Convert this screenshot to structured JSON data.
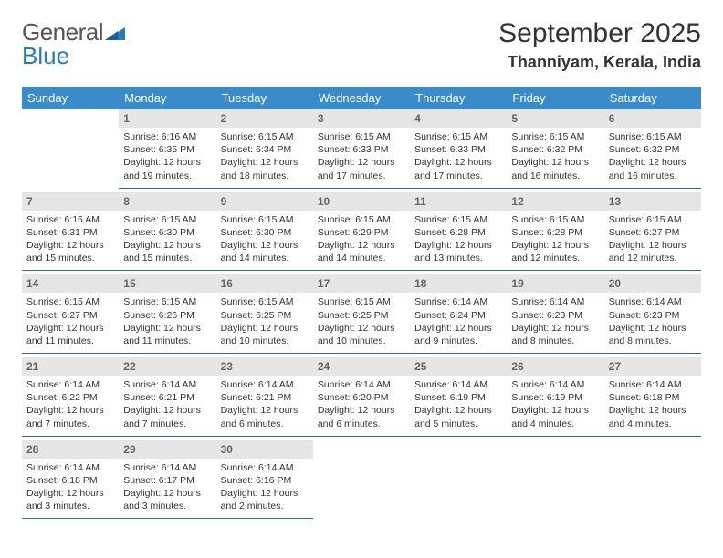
{
  "brand": {
    "part1": "General",
    "part2": "Blue"
  },
  "title": "September 2025",
  "location": "Thanniyam, Kerala, India",
  "colors": {
    "header_bg": "#3a8bc9",
    "header_text": "#ffffff",
    "daynum_bg": "#e6e6e6",
    "daynum_text": "#666666",
    "border": "#2a6ea8",
    "body_text": "#333333",
    "page_bg": "#ffffff"
  },
  "weekdays": [
    "Sunday",
    "Monday",
    "Tuesday",
    "Wednesday",
    "Thursday",
    "Friday",
    "Saturday"
  ],
  "weeks": [
    [
      {
        "n": "",
        "sr": "",
        "ss": "",
        "dl": ""
      },
      {
        "n": "1",
        "sr": "Sunrise: 6:16 AM",
        "ss": "Sunset: 6:35 PM",
        "dl": "Daylight: 12 hours and 19 minutes."
      },
      {
        "n": "2",
        "sr": "Sunrise: 6:15 AM",
        "ss": "Sunset: 6:34 PM",
        "dl": "Daylight: 12 hours and 18 minutes."
      },
      {
        "n": "3",
        "sr": "Sunrise: 6:15 AM",
        "ss": "Sunset: 6:33 PM",
        "dl": "Daylight: 12 hours and 17 minutes."
      },
      {
        "n": "4",
        "sr": "Sunrise: 6:15 AM",
        "ss": "Sunset: 6:33 PM",
        "dl": "Daylight: 12 hours and 17 minutes."
      },
      {
        "n": "5",
        "sr": "Sunrise: 6:15 AM",
        "ss": "Sunset: 6:32 PM",
        "dl": "Daylight: 12 hours and 16 minutes."
      },
      {
        "n": "6",
        "sr": "Sunrise: 6:15 AM",
        "ss": "Sunset: 6:32 PM",
        "dl": "Daylight: 12 hours and 16 minutes."
      }
    ],
    [
      {
        "n": "7",
        "sr": "Sunrise: 6:15 AM",
        "ss": "Sunset: 6:31 PM",
        "dl": "Daylight: 12 hours and 15 minutes."
      },
      {
        "n": "8",
        "sr": "Sunrise: 6:15 AM",
        "ss": "Sunset: 6:30 PM",
        "dl": "Daylight: 12 hours and 15 minutes."
      },
      {
        "n": "9",
        "sr": "Sunrise: 6:15 AM",
        "ss": "Sunset: 6:30 PM",
        "dl": "Daylight: 12 hours and 14 minutes."
      },
      {
        "n": "10",
        "sr": "Sunrise: 6:15 AM",
        "ss": "Sunset: 6:29 PM",
        "dl": "Daylight: 12 hours and 14 minutes."
      },
      {
        "n": "11",
        "sr": "Sunrise: 6:15 AM",
        "ss": "Sunset: 6:28 PM",
        "dl": "Daylight: 12 hours and 13 minutes."
      },
      {
        "n": "12",
        "sr": "Sunrise: 6:15 AM",
        "ss": "Sunset: 6:28 PM",
        "dl": "Daylight: 12 hours and 12 minutes."
      },
      {
        "n": "13",
        "sr": "Sunrise: 6:15 AM",
        "ss": "Sunset: 6:27 PM",
        "dl": "Daylight: 12 hours and 12 minutes."
      }
    ],
    [
      {
        "n": "14",
        "sr": "Sunrise: 6:15 AM",
        "ss": "Sunset: 6:27 PM",
        "dl": "Daylight: 12 hours and 11 minutes."
      },
      {
        "n": "15",
        "sr": "Sunrise: 6:15 AM",
        "ss": "Sunset: 6:26 PM",
        "dl": "Daylight: 12 hours and 11 minutes."
      },
      {
        "n": "16",
        "sr": "Sunrise: 6:15 AM",
        "ss": "Sunset: 6:25 PM",
        "dl": "Daylight: 12 hours and 10 minutes."
      },
      {
        "n": "17",
        "sr": "Sunrise: 6:15 AM",
        "ss": "Sunset: 6:25 PM",
        "dl": "Daylight: 12 hours and 10 minutes."
      },
      {
        "n": "18",
        "sr": "Sunrise: 6:14 AM",
        "ss": "Sunset: 6:24 PM",
        "dl": "Daylight: 12 hours and 9 minutes."
      },
      {
        "n": "19",
        "sr": "Sunrise: 6:14 AM",
        "ss": "Sunset: 6:23 PM",
        "dl": "Daylight: 12 hours and 8 minutes."
      },
      {
        "n": "20",
        "sr": "Sunrise: 6:14 AM",
        "ss": "Sunset: 6:23 PM",
        "dl": "Daylight: 12 hours and 8 minutes."
      }
    ],
    [
      {
        "n": "21",
        "sr": "Sunrise: 6:14 AM",
        "ss": "Sunset: 6:22 PM",
        "dl": "Daylight: 12 hours and 7 minutes."
      },
      {
        "n": "22",
        "sr": "Sunrise: 6:14 AM",
        "ss": "Sunset: 6:21 PM",
        "dl": "Daylight: 12 hours and 7 minutes."
      },
      {
        "n": "23",
        "sr": "Sunrise: 6:14 AM",
        "ss": "Sunset: 6:21 PM",
        "dl": "Daylight: 12 hours and 6 minutes."
      },
      {
        "n": "24",
        "sr": "Sunrise: 6:14 AM",
        "ss": "Sunset: 6:20 PM",
        "dl": "Daylight: 12 hours and 6 minutes."
      },
      {
        "n": "25",
        "sr": "Sunrise: 6:14 AM",
        "ss": "Sunset: 6:19 PM",
        "dl": "Daylight: 12 hours and 5 minutes."
      },
      {
        "n": "26",
        "sr": "Sunrise: 6:14 AM",
        "ss": "Sunset: 6:19 PM",
        "dl": "Daylight: 12 hours and 4 minutes."
      },
      {
        "n": "27",
        "sr": "Sunrise: 6:14 AM",
        "ss": "Sunset: 6:18 PM",
        "dl": "Daylight: 12 hours and 4 minutes."
      }
    ],
    [
      {
        "n": "28",
        "sr": "Sunrise: 6:14 AM",
        "ss": "Sunset: 6:18 PM",
        "dl": "Daylight: 12 hours and 3 minutes."
      },
      {
        "n": "29",
        "sr": "Sunrise: 6:14 AM",
        "ss": "Sunset: 6:17 PM",
        "dl": "Daylight: 12 hours and 3 minutes."
      },
      {
        "n": "30",
        "sr": "Sunrise: 6:14 AM",
        "ss": "Sunset: 6:16 PM",
        "dl": "Daylight: 12 hours and 2 minutes."
      },
      {
        "n": "",
        "sr": "",
        "ss": "",
        "dl": ""
      },
      {
        "n": "",
        "sr": "",
        "ss": "",
        "dl": ""
      },
      {
        "n": "",
        "sr": "",
        "ss": "",
        "dl": ""
      },
      {
        "n": "",
        "sr": "",
        "ss": "",
        "dl": ""
      }
    ]
  ]
}
